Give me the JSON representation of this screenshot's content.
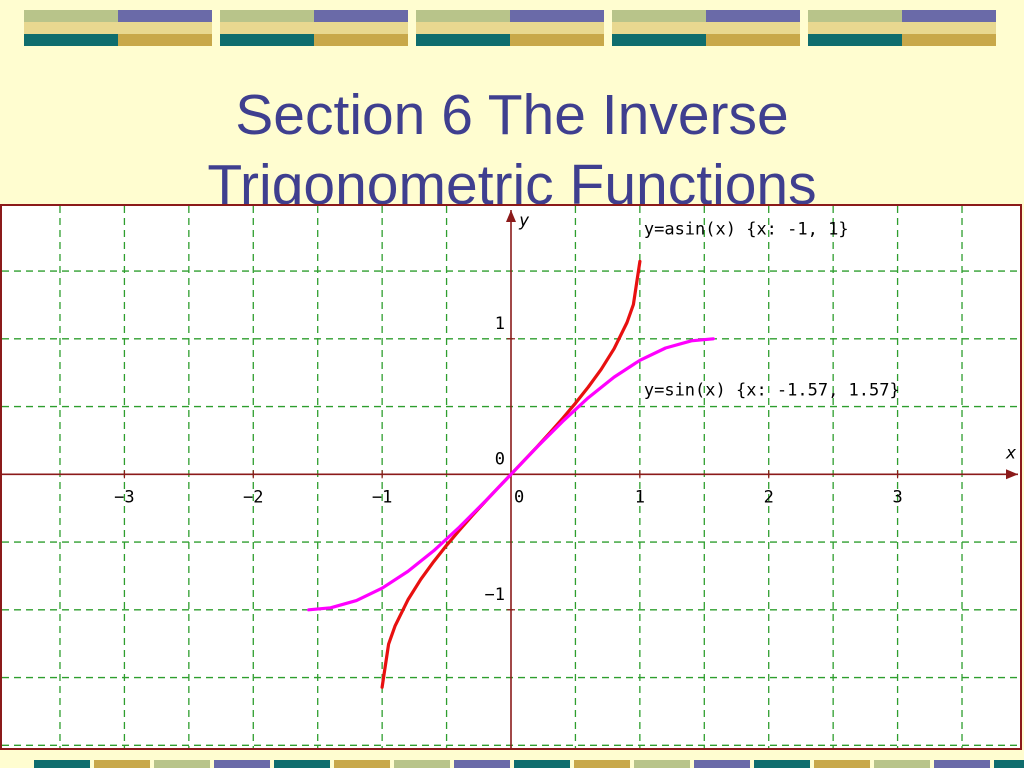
{
  "slide": {
    "title_line1": "Section 6 The Inverse",
    "title_line2": "Trigonometric Functions"
  },
  "colors": {
    "background": "#fffdd0",
    "title": "#3f3f8f",
    "frame": "#8b1a1a",
    "grid": "#2e9e2e",
    "axes": "#8b1a1a",
    "asin_curve": "#e81010",
    "sin_curve": "#ff00ff",
    "band_teal": "#0f6d6d",
    "band_sage": "#b8c48a",
    "band_slate": "#6a6aa8",
    "band_gold": "#c8a84a",
    "band_cream": "#e8d890"
  },
  "chart_data": {
    "type": "line",
    "xlabel": "x",
    "ylabel": "y",
    "xlim": [
      -3.95,
      3.95
    ],
    "ylim": [
      -2.02,
      1.98
    ],
    "grid": true,
    "x_ticks": [
      {
        "value": -3,
        "label": "−3"
      },
      {
        "value": -2,
        "label": "−2"
      },
      {
        "value": -1,
        "label": "−1"
      },
      {
        "value": 0,
        "label": "0"
      },
      {
        "value": 1,
        "label": "1"
      },
      {
        "value": 2,
        "label": "2"
      },
      {
        "value": 3,
        "label": "3"
      }
    ],
    "y_ticks": [
      {
        "value": 1,
        "label": "1"
      },
      {
        "value": 0,
        "label": "0"
      },
      {
        "value": -1,
        "label": "−1"
      }
    ],
    "series": [
      {
        "name": "y=asin(x)  {x: -1, 1}",
        "color": "#e81010",
        "x": [
          -1,
          -0.95,
          -0.9,
          -0.8,
          -0.7,
          -0.6,
          -0.5,
          -0.4,
          -0.3,
          -0.2,
          -0.1,
          0,
          0.1,
          0.2,
          0.3,
          0.4,
          0.5,
          0.6,
          0.7,
          0.8,
          0.9,
          0.95,
          1
        ],
        "y": [
          -1.571,
          -1.253,
          -1.12,
          -0.927,
          -0.775,
          -0.644,
          -0.524,
          -0.412,
          -0.305,
          -0.201,
          -0.1,
          0,
          0.1,
          0.201,
          0.305,
          0.412,
          0.524,
          0.644,
          0.775,
          0.927,
          1.12,
          1.253,
          1.571
        ]
      },
      {
        "name": "y=sin(x)  {x: -1.57, 1.57}",
        "color": "#ff00ff",
        "x": [
          -1.57,
          -1.4,
          -1.2,
          -1.0,
          -0.8,
          -0.6,
          -0.4,
          -0.2,
          0,
          0.2,
          0.4,
          0.6,
          0.8,
          1.0,
          1.2,
          1.4,
          1.57
        ],
        "y": [
          -1.0,
          -0.985,
          -0.932,
          -0.841,
          -0.717,
          -0.565,
          -0.389,
          -0.199,
          0,
          0.199,
          0.389,
          0.565,
          0.717,
          0.841,
          0.932,
          0.985,
          1.0
        ]
      }
    ]
  }
}
